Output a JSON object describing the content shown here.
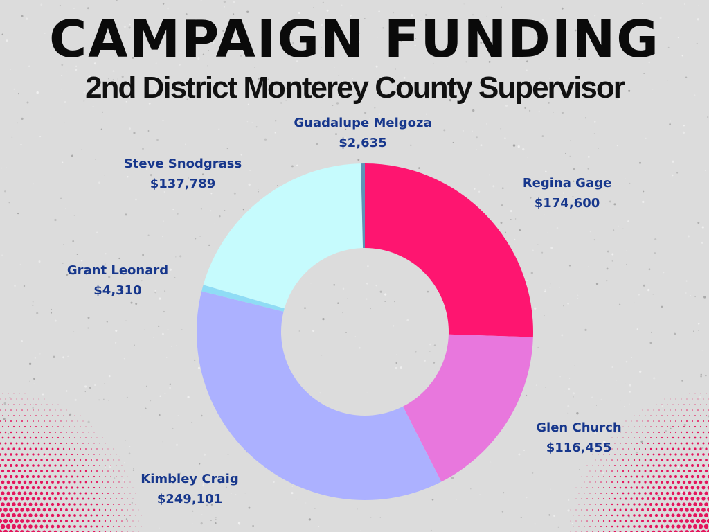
{
  "title": "CAMPAIGN FUNDING",
  "subtitle": "2nd District Monterey County Supervisor",
  "colors": {
    "label_text": "#17378c",
    "dot_pattern": "#e4145c"
  },
  "chart_data": {
    "type": "donut",
    "title": "CAMPAIGN FUNDING",
    "subtitle": "2nd District Monterey County Supervisor",
    "slices": [
      {
        "name": "Regina Gage",
        "value": 174600,
        "display": "$174,600",
        "color": "#fe1570"
      },
      {
        "name": "Glen Church",
        "value": 116455,
        "display": "$116,455",
        "color": "#e877dd"
      },
      {
        "name": "Kimbley Craig",
        "value": 249101,
        "display": "$249,101",
        "color": "#acb1ff"
      },
      {
        "name": "Grant Leonard",
        "value": 4310,
        "display": "$4,310",
        "color": "#8fdcf5"
      },
      {
        "name": "Steve Snodgrass",
        "value": 137789,
        "display": "$137,789",
        "color": "#c6fbfd"
      },
      {
        "name": "Guadalupe Melgoza",
        "value": 2635,
        "display": "$2,635",
        "color": "#5e93b6"
      }
    ]
  }
}
